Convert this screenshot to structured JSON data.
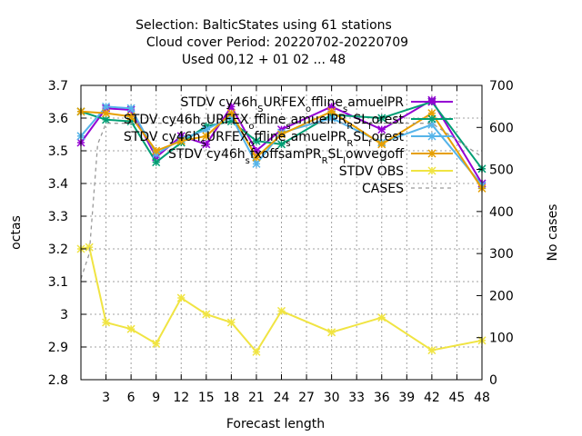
{
  "chart_data": {
    "type": "line",
    "title_lines": [
      "Selection: BalticStates using    61 stations",
      "Cloud cover   Period: 20220702-20220709",
      "Used  00,12  + 01 02 ... 48"
    ],
    "xlabel": "Forecast length",
    "ylabel": "octas",
    "y2label": "No cases",
    "xlim": [
      0,
      48
    ],
    "ylim": [
      2.8,
      3.7
    ],
    "y2lim": [
      0,
      700
    ],
    "x_ticks": [
      3,
      6,
      9,
      12,
      15,
      18,
      21,
      24,
      27,
      30,
      33,
      36,
      39,
      42,
      45,
      48
    ],
    "y_ticks": [
      2.8,
      2.9,
      3.0,
      3.1,
      3.2,
      3.3,
      3.4,
      3.5,
      3.6,
      3.7
    ],
    "y_tick_labels": [
      "2.8",
      "2.9",
      "3",
      "3.1",
      "3.2",
      "3.3",
      "3.4",
      "3.5",
      "3.6",
      "3.7"
    ],
    "y2_ticks": [
      0,
      100,
      200,
      300,
      400,
      500,
      600,
      700
    ],
    "legend_position": "top-right",
    "series": [
      {
        "name": "STDV cy46h_URFEX_offline_samuelPR",
        "name_parts": [
          [
            "STDV cy46h",
            ""
          ],
          [
            "S",
            "sub"
          ],
          [
            "URFEX",
            ""
          ],
          [
            "o",
            "sub"
          ],
          [
            "ffline",
            ""
          ],
          [
            "s",
            "sub"
          ],
          [
            "amuelPR",
            ""
          ]
        ],
        "color": "#9400d3",
        "marker": "star",
        "axis": "y",
        "x": [
          0,
          3,
          6,
          9,
          12,
          15,
          18,
          21,
          24,
          30,
          36,
          42,
          48
        ],
        "values": [
          3.525,
          3.63,
          3.625,
          3.48,
          3.545,
          3.52,
          3.635,
          3.5,
          3.565,
          3.635,
          3.565,
          3.655,
          3.4
        ]
      },
      {
        "name": "STDV cy46h_URFEX_offline_samuelPR_RSL_forest",
        "name_parts": [
          [
            "STDV cy46h",
            ""
          ],
          [
            "S",
            "sub"
          ],
          [
            "URFEX",
            ""
          ],
          [
            "o",
            "sub"
          ],
          [
            "ffline",
            ""
          ],
          [
            "s",
            "sub"
          ],
          [
            "amuelPR",
            ""
          ],
          [
            "R",
            "sub"
          ],
          [
            "SL",
            ""
          ],
          [
            "f",
            "sub"
          ],
          [
            "orest",
            ""
          ]
        ],
        "color": "#009e73",
        "marker": "star",
        "axis": "y",
        "x": [
          0,
          3,
          6,
          9,
          12,
          15,
          18,
          21,
          24,
          30,
          36,
          42,
          48
        ],
        "values": [
          3.62,
          3.595,
          3.59,
          3.465,
          3.525,
          3.575,
          3.59,
          3.53,
          3.52,
          3.61,
          3.6,
          3.65,
          3.445
        ]
      },
      {
        "name": "STDV cy46h_URFEX_offline_samuelPR_RSL_forest",
        "name_parts": [
          [
            "STDV cy46h",
            ""
          ],
          [
            "S",
            "sub"
          ],
          [
            "URFEX",
            ""
          ],
          [
            "o",
            "sub"
          ],
          [
            "ffline",
            ""
          ],
          [
            "s",
            "sub"
          ],
          [
            "amuelPR",
            ""
          ],
          [
            "R",
            "sub"
          ],
          [
            "SL",
            ""
          ],
          [
            "f",
            "sub"
          ],
          [
            "orest",
            ""
          ]
        ],
        "color": "#56b4e9",
        "marker": "star",
        "axis": "y",
        "x": [
          0,
          3,
          6,
          9,
          12,
          15,
          18,
          21,
          24,
          30,
          36,
          42,
          48
        ],
        "values": [
          3.545,
          3.635,
          3.63,
          3.49,
          3.535,
          3.565,
          3.605,
          3.46,
          3.555,
          3.6,
          3.525,
          3.58,
          3.395
        ]
      },
      {
        "name": "STDV cy46h_fxoffsamPR_RSL_lowvegoff",
        "name_parts": [
          [
            "STDV cy46h",
            ""
          ],
          [
            "s",
            "sub"
          ],
          [
            "fxoffsamPR",
            ""
          ],
          [
            "R",
            "sub"
          ],
          [
            "SL",
            ""
          ],
          [
            "l",
            "sub"
          ],
          [
            "owvegoff",
            ""
          ]
        ],
        "color": "#e69f00",
        "marker": "star",
        "axis": "y",
        "x": [
          0,
          3,
          6,
          9,
          12,
          15,
          18,
          21,
          24,
          30,
          36,
          42,
          48
        ],
        "values": [
          3.62,
          3.615,
          3.605,
          3.5,
          3.53,
          3.545,
          3.615,
          3.48,
          3.55,
          3.62,
          3.52,
          3.615,
          3.385
        ]
      },
      {
        "name": "STDV OBS",
        "color": "#f0e442",
        "marker": "star",
        "axis": "y",
        "x": [
          0,
          1,
          3,
          6,
          9,
          12,
          15,
          18,
          21,
          24,
          30,
          36,
          42,
          48
        ],
        "values": [
          3.2,
          3.205,
          2.975,
          2.955,
          2.91,
          3.05,
          3.0,
          2.975,
          2.885,
          3.01,
          2.945,
          2.99,
          2.89,
          2.92
        ]
      },
      {
        "name": "CASES",
        "color": "#999999",
        "marker": "none",
        "dash": true,
        "axis": "y2",
        "x": [
          0,
          1,
          2,
          3,
          6,
          9,
          12,
          15,
          18,
          21,
          24,
          30,
          36,
          42,
          48
        ],
        "values": [
          240,
          300,
          560,
          610,
          610,
          610,
          610,
          610,
          610,
          610,
          610,
          610,
          610,
          610,
          530
        ]
      }
    ]
  }
}
